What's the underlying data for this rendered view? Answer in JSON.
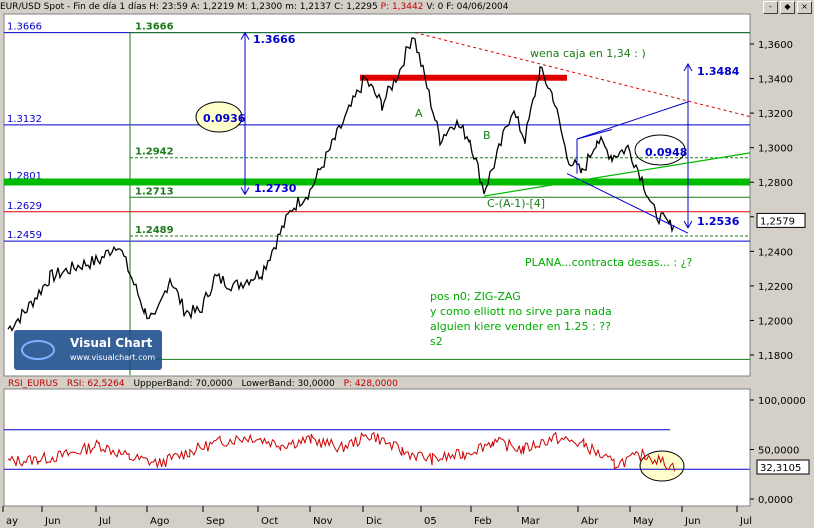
{
  "header": {
    "symbol": "EUR/USD Spot",
    "description": "Fin de día 1 días",
    "hour": "H: 23:59",
    "open": "A: 1,2219",
    "high": "M: 1,2300",
    "low": "m: 1,2137",
    "close": "C: 1,2295",
    "p": "P: 1,3442",
    "v": "V: 0",
    "date": "F: 04/06/2004"
  },
  "window_buttons": [
    "-",
    "◆",
    "×"
  ],
  "colors": {
    "background": "#ffffff",
    "price_series": "#000000",
    "blue": "#0000cc",
    "green": "#1a7a1a",
    "bright_green": "#00bb00",
    "red": "#e00000",
    "rsi_line": "#cc0000",
    "watermark_bg": "#1a4a8a"
  },
  "price_axis": {
    "ticks": [
      "1,3600",
      "1,3400",
      "1,3200",
      "1,3000",
      "1,2800",
      "1,2600",
      "1,2400",
      "1,2200",
      "1,2000",
      "1,1800"
    ],
    "last_price": "1,2579"
  },
  "time_axis": {
    "ticks": [
      "ay",
      "Jun",
      "Jul",
      "Ago",
      "Sep",
      "Oct",
      "Nov",
      "Dic",
      "05",
      "Feb",
      "Mar",
      "Abr",
      "May",
      "Jun",
      "Jul"
    ]
  },
  "levels": {
    "blue_left": [
      "1.3666",
      "1.3132",
      "1.2801",
      "1.2629",
      "1.2459"
    ],
    "green_left": [
      "1.3666",
      "1.2942",
      "1.2713",
      "1.2489"
    ]
  },
  "annotations": {
    "top_target": "1.3666",
    "range_a": "0.0936",
    "lower_target": "1.2730",
    "right_target": "1.3484",
    "range_b": "0.0948",
    "bottom_target": "1.2536",
    "box_comment": "wena caja en 1,34 : )",
    "wave_a": "A",
    "wave_b": "B",
    "wave_c": "C-(A-1)-[4]",
    "plana": "PLANA...contracta desas... : ¿?",
    "note_lines": [
      "pos n0; ZIG-ZAG",
      "y como elliott no sirve para nada",
      "alguien kiere vender en 1.25 : ??",
      "s2"
    ]
  },
  "watermark": {
    "brand": "Visual Chart",
    "url": "www.visualchart.com"
  },
  "rsi": {
    "header_label": "RSI_EURUS",
    "value": "RSI: 62,5264",
    "upper": "UppperBand: 70,0000",
    "lower": "LowerBand: 30,0000",
    "p": "P: 428,0000",
    "ticks": [
      "100,0000",
      "50,0000",
      "0,0000"
    ],
    "last": "32,3105"
  },
  "chart_data": {
    "type": "line",
    "title": "EUR/USD Spot",
    "x_labels": [
      "ay",
      "Jun",
      "Jul",
      "Ago",
      "Sep",
      "Oct",
      "Nov",
      "Dic",
      "05",
      "Feb",
      "Mar",
      "Abr",
      "May",
      "Jun",
      "Jul"
    ],
    "ylim": [
      1.17,
      1.375
    ],
    "series": [
      {
        "name": "EUR/USD Spot",
        "x": [
          "May 2004",
          "Jun 2004",
          "Jul 2004",
          "Ago 2004",
          "Sep 2004",
          "Oct 2004",
          "Nov 2004",
          "Dic 2004",
          "Ene 2005",
          "Feb 2005",
          "Mar 2005",
          "Abr 2005",
          "May 2005"
        ],
        "values": [
          1.2,
          1.225,
          1.235,
          1.21,
          1.205,
          1.255,
          1.305,
          1.34,
          1.32,
          1.295,
          1.33,
          1.295,
          1.257
        ]
      }
    ],
    "horizontal_levels": [
      1.3666,
      1.3132,
      1.2942,
      1.2801,
      1.2713,
      1.2629,
      1.2489,
      1.2459,
      1.1775
    ],
    "rsi": {
      "ylim": [
        0,
        100
      ],
      "upper_band": 70,
      "lower_band": 30,
      "values": [
        38,
        40,
        45,
        55,
        42,
        36,
        48,
        58,
        63,
        55,
        60,
        52,
        65,
        48,
        40,
        45,
        58,
        50,
        62,
        55,
        35,
        45,
        32
      ]
    }
  }
}
